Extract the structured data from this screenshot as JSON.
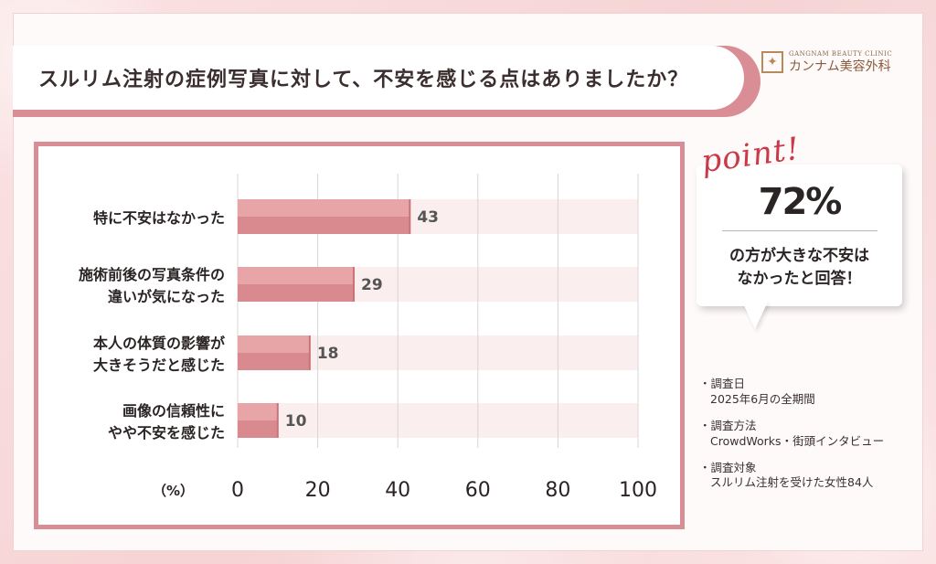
{
  "title": "スルリム注射の症例写真に対して、不安を感じる点はありましたか？",
  "logo": {
    "en": "GANGNAM BEAUTY CLINIC",
    "jp": "カンナム美容外科"
  },
  "callout": {
    "point_label": "point!",
    "big_value": "72%",
    "text_line1": "の方が大きな不安は",
    "text_line2": "なかったと回答！"
  },
  "notes": [
    {
      "head": "調査日",
      "body": "2025年6月の全期間"
    },
    {
      "head": "調査方法",
      "body": "CrowdWorks・街頭インタビュー"
    },
    {
      "head": "調査対象",
      "body": "スルリム注射を受けた女性84人"
    }
  ],
  "colors": {
    "accent": "#d98d94",
    "bar": "#e8a5a8",
    "bar_dark": "#d98a8e",
    "track": "#fbeeee",
    "point_red": "#c73a48"
  },
  "chart_data": {
    "type": "bar",
    "orientation": "horizontal",
    "categories": [
      [
        "特に不安はなかった"
      ],
      [
        "施術前後の写真条件の",
        "違いが気になった"
      ],
      [
        "本人の体質の影響が",
        "大きそうだと感じた"
      ],
      [
        "画像の信頼性に",
        "やや不安を感じた"
      ]
    ],
    "values": [
      43,
      29,
      18,
      10
    ],
    "xlim": [
      0,
      100
    ],
    "xticks": [
      0,
      20,
      40,
      60,
      80,
      100
    ],
    "unit_label": "（%）",
    "grid": true
  }
}
